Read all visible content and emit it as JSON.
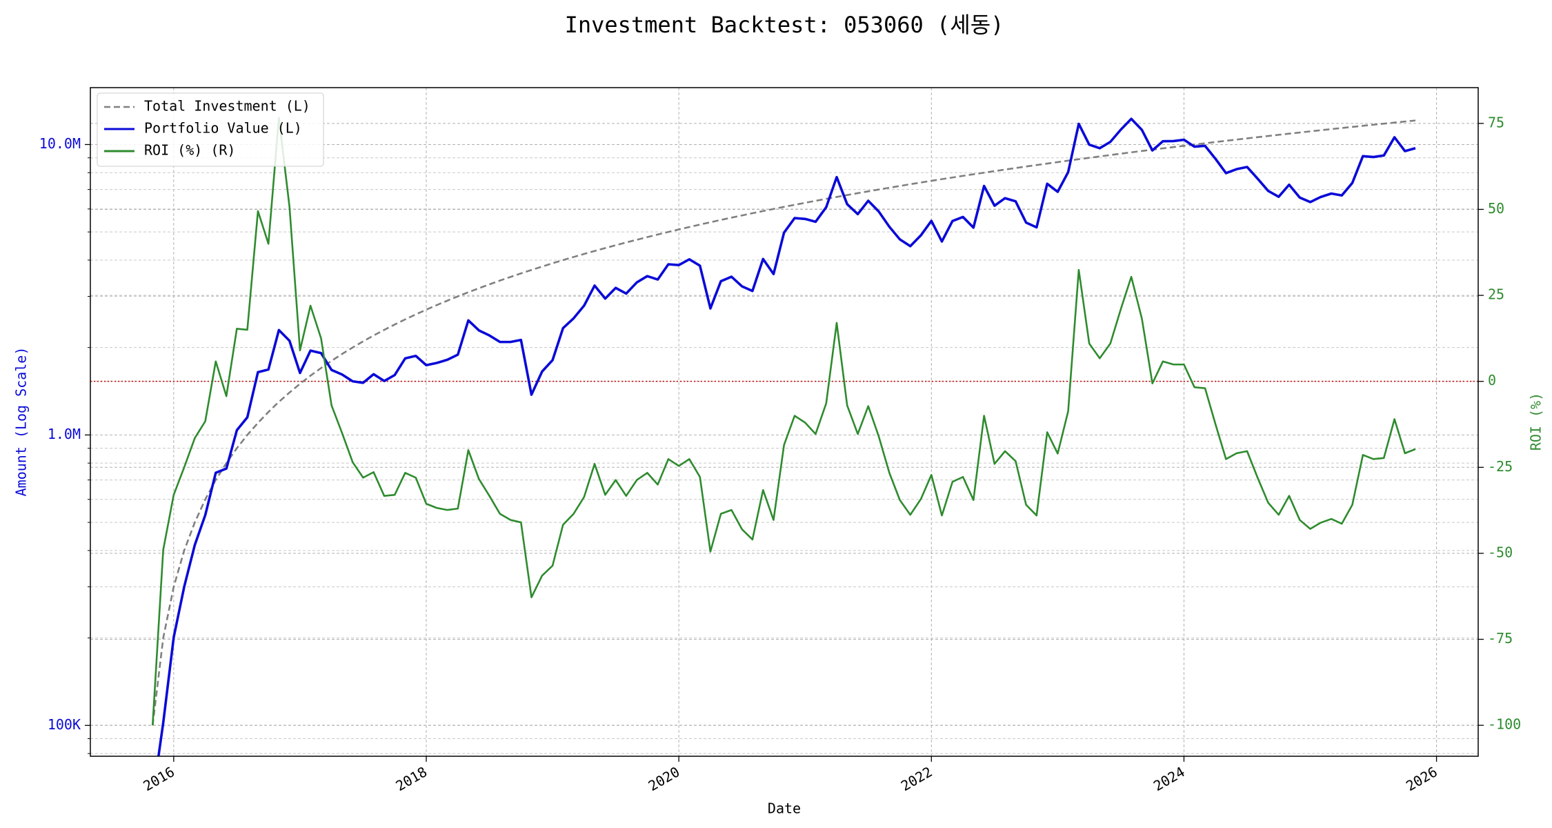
{
  "chart_data": {
    "type": "line",
    "title": "Investment Backtest: 053060 (세동)",
    "xlabel": "Date",
    "ylabel": "Amount (Log Scale)",
    "y2label": "ROI (%)",
    "yscale": "log",
    "grid": true,
    "legend": "upper left",
    "xlim": [
      2015.34,
      2026.33
    ],
    "xticks": [
      2016,
      2018,
      2020,
      2022,
      2024,
      2026
    ],
    "ylim": [
      78300,
      15700000
    ],
    "yticks": [
      {
        "value": 100000,
        "label": "100K"
      },
      {
        "value": 1000000,
        "label": "1.0M"
      },
      {
        "value": 10000000,
        "label": "10.0M"
      }
    ],
    "yminorticks": [
      80000,
      90000,
      200000,
      300000,
      400000,
      500000,
      600000,
      700000,
      800000,
      900000,
      2000000,
      3000000,
      4000000,
      5000000,
      6000000,
      7000000,
      8000000,
      9000000
    ],
    "y2lim": [
      -109,
      85.4
    ],
    "y2ticks": [
      -100,
      -75,
      -50,
      -25,
      0,
      25,
      50,
      75
    ],
    "reference_line": {
      "axis": "y2",
      "value": 0,
      "color": "#cc0000"
    },
    "x": [
      2015.833,
      2015.917,
      2016.0,
      2016.083,
      2016.167,
      2016.25,
      2016.333,
      2016.417,
      2016.5,
      2016.583,
      2016.667,
      2016.75,
      2016.833,
      2016.917,
      2017.0,
      2017.083,
      2017.167,
      2017.25,
      2017.333,
      2017.417,
      2017.5,
      2017.583,
      2017.667,
      2017.75,
      2017.833,
      2017.917,
      2018.0,
      2018.083,
      2018.167,
      2018.25,
      2018.333,
      2018.417,
      2018.5,
      2018.583,
      2018.667,
      2018.75,
      2018.833,
      2018.917,
      2019.0,
      2019.083,
      2019.167,
      2019.25,
      2019.333,
      2019.417,
      2019.5,
      2019.583,
      2019.667,
      2019.75,
      2019.833,
      2019.917,
      2020.0,
      2020.083,
      2020.167,
      2020.25,
      2020.333,
      2020.417,
      2020.5,
      2020.583,
      2020.667,
      2020.75,
      2020.833,
      2020.917,
      2021.0,
      2021.083,
      2021.167,
      2021.25,
      2021.333,
      2021.417,
      2021.5,
      2021.583,
      2021.667,
      2021.75,
      2021.833,
      2021.917,
      2022.0,
      2022.083,
      2022.167,
      2022.25,
      2022.333,
      2022.417,
      2022.5,
      2022.583,
      2022.667,
      2022.75,
      2022.833,
      2022.917,
      2023.0,
      2023.083,
      2023.167,
      2023.25,
      2023.333,
      2023.417,
      2023.5,
      2023.583,
      2023.667,
      2023.75,
      2023.833,
      2023.917,
      2024.0,
      2024.083,
      2024.167,
      2024.25,
      2024.333,
      2024.417,
      2024.5,
      2024.583,
      2024.667,
      2024.75,
      2024.833,
      2024.917,
      2025.0,
      2025.083,
      2025.167,
      2025.25,
      2025.333,
      2025.417,
      2025.5,
      2025.583,
      2025.667,
      2025.75,
      2025.833
    ],
    "series": [
      {
        "name": "Total Investment (L)",
        "color": "#808080",
        "dash": "dashed",
        "axis": "y",
        "values": [
          100000,
          200000,
          300000,
          400000,
          500000,
          600000,
          700000,
          800000,
          900000,
          1000000,
          1100000,
          1200000,
          1300000,
          1400000,
          1500000,
          1600000,
          1700000,
          1800000,
          1900000,
          2000000,
          2100000,
          2200000,
          2300000,
          2400000,
          2500000,
          2600000,
          2700000,
          2800000,
          2900000,
          3000000,
          3100000,
          3200000,
          3300000,
          3400000,
          3500000,
          3600000,
          3700000,
          3800000,
          3900000,
          4000000,
          4100000,
          4200000,
          4300000,
          4400000,
          4500000,
          4600000,
          4700000,
          4800000,
          4900000,
          5000000,
          5100000,
          5200000,
          5300000,
          5400000,
          5500000,
          5600000,
          5700000,
          5800000,
          5900000,
          6000000,
          6100000,
          6200000,
          6300000,
          6400000,
          6500000,
          6600000,
          6700000,
          6800000,
          6900000,
          7000000,
          7100000,
          7200000,
          7300000,
          7400000,
          7500000,
          7600000,
          7700000,
          7800000,
          7900000,
          8000000,
          8100000,
          8200000,
          8300000,
          8400000,
          8500000,
          8600000,
          8700000,
          8800000,
          8900000,
          9000000,
          9100000,
          9200000,
          9300000,
          9400000,
          9500000,
          9600000,
          9700000,
          9800000,
          9900000,
          10000000,
          10100000,
          10200000,
          10300000,
          10400000,
          10500000,
          10600000,
          10700000,
          10800000,
          10900000,
          11000000,
          11100000,
          11200000,
          11300000,
          11400000,
          11500000,
          11600000,
          11700000,
          11800000,
          11900000,
          12000000,
          12100000
        ]
      },
      {
        "name": "Portfolio Value (L)",
        "color": "#0a0ad8",
        "dash": "solid",
        "axis": "y",
        "values": [
          0,
          102000,
          201000,
          300000,
          418000,
          530000,
          741000,
          766000,
          1038000,
          1150000,
          1645000,
          1680000,
          2297000,
          2110000,
          1635000,
          1952000,
          1913000,
          1674000,
          1615000,
          1530000,
          1512000,
          1619000,
          1534000,
          1608000,
          1835000,
          1872000,
          1739000,
          1770000,
          1815000,
          1890000,
          2480000,
          2291000,
          2201000,
          2091000,
          2090000,
          2124000,
          1376000,
          1653000,
          1810000,
          2332000,
          2522000,
          2789000,
          3268000,
          2948000,
          3209000,
          3068000,
          3351000,
          3523000,
          3430000,
          3870000,
          3845000,
          4025000,
          3827000,
          2727000,
          3383000,
          3506000,
          3249000,
          3132000,
          4036000,
          3582000,
          4972000,
          5580000,
          5544000,
          5421000,
          6084000,
          7722000,
          6231000,
          5760000,
          6403000,
          5880000,
          5211000,
          4716000,
          4468000,
          4869000,
          5460000,
          4636000,
          5452000,
          5632000,
          5175000,
          7200000,
          6156000,
          6535000,
          6374000,
          5384000,
          5185000,
          7327000,
          6873000,
          8034000,
          11784000,
          9990000,
          9710000,
          10212000,
          11253000,
          12258000,
          11229000,
          9542000,
          10263000,
          10280000,
          10385000,
          9830000,
          9898000,
          8925000,
          7972000,
          8226000,
          8369000,
          7632000,
          6923000,
          6610000,
          7270000,
          6567000,
          6338000,
          6597000,
          6780000,
          6680000,
          7372000,
          9118000,
          9056000,
          9169000,
          10591000,
          9492000,
          9716000
        ]
      },
      {
        "name": "ROI (%) (R)",
        "color": "#2e8b2e",
        "dash": "solid",
        "axis": "y2",
        "values": [
          -100,
          -49,
          -33,
          -25,
          -16.5,
          -11.6,
          5.8,
          -4.3,
          15.3,
          15,
          49.5,
          40,
          76.7,
          50.7,
          9,
          22,
          12.5,
          -7,
          -15,
          -23.5,
          -28,
          -26.4,
          -33.3,
          -33,
          -26.6,
          -28,
          -35.6,
          -36.8,
          -37.4,
          -37,
          -20,
          -28.4,
          -33.3,
          -38.5,
          -40.3,
          -41,
          -62.8,
          -56.5,
          -53.6,
          -41.7,
          -38.5,
          -33.6,
          -24,
          -33,
          -28.7,
          -33.3,
          -28.7,
          -26.6,
          -30,
          -22.6,
          -24.6,
          -22.6,
          -27.8,
          -49.5,
          -38.5,
          -37.4,
          -43,
          -46,
          -31.6,
          -40.3,
          -18.5,
          -10,
          -12,
          -15.3,
          -6.4,
          17,
          -7,
          -15.3,
          -7.2,
          -16,
          -26.6,
          -34.5,
          -38.8,
          -34.2,
          -27.2,
          -39,
          -29.2,
          -27.8,
          -34.5,
          -10,
          -24,
          -20.3,
          -23.2,
          -35.9,
          -39,
          -14.8,
          -21,
          -8.7,
          32.4,
          11,
          6.7,
          11,
          21,
          30.4,
          18.2,
          -0.6,
          5.8,
          4.9,
          4.9,
          -1.7,
          -2,
          -12.5,
          -22.6,
          -20.9,
          -20.3,
          -28,
          -35.3,
          -38.8,
          -33.3,
          -40.3,
          -42.9,
          -41.1,
          -40,
          -41.4,
          -35.9,
          -21.4,
          -22.6,
          -22.3,
          -11,
          -20.9,
          -19.7
        ]
      }
    ]
  }
}
